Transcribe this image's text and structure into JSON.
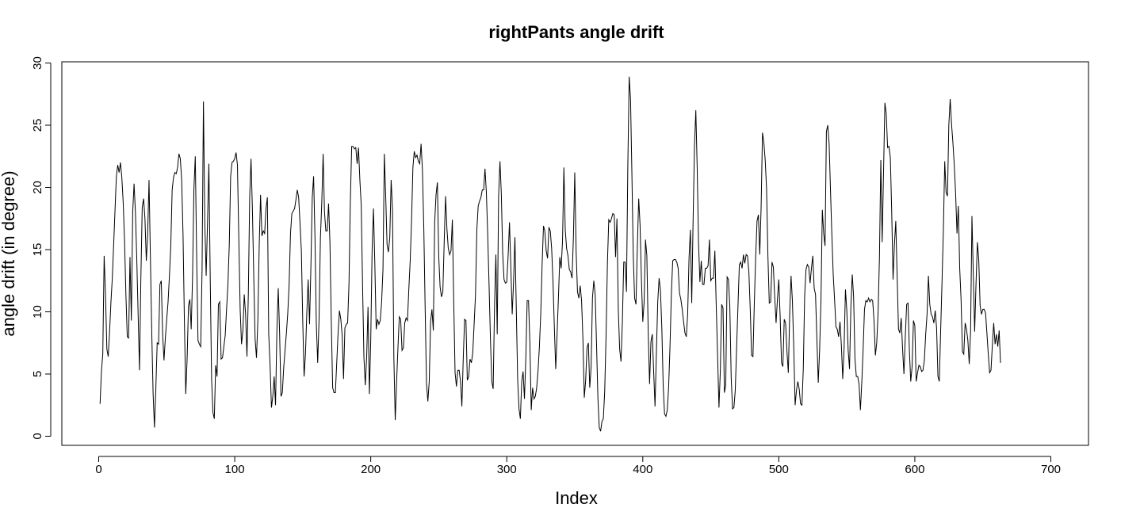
{
  "chart_data": {
    "type": "line",
    "title": "rightPants angle drift",
    "xlabel": "Index",
    "ylabel": "angle drift (in degree)",
    "xlim": [
      1,
      700
    ],
    "ylim": [
      0,
      30
    ],
    "x_ticks": [
      0,
      100,
      200,
      300,
      400,
      500,
      600,
      700
    ],
    "y_ticks": [
      0,
      5,
      10,
      15,
      20,
      25,
      30
    ],
    "grid": false,
    "legend": "none",
    "line_color": "#000000",
    "series": [
      {
        "x_start": 1,
        "x_step": 1,
        "values": [
          2.6,
          5.2,
          6.6,
          14.5,
          11.4,
          7.0,
          6.4,
          8.4,
          10.8,
          12.7,
          15.4,
          18.2,
          20.9,
          21.8,
          21.2,
          22.0,
          20.8,
          18.8,
          15.7,
          11.4,
          8.0,
          7.9,
          14.4,
          9.3,
          18.0,
          20.3,
          18.0,
          14.2,
          9.7,
          5.3,
          12.7,
          18.4,
          19.1,
          17.5,
          14.1,
          16.2,
          20.6,
          14.4,
          8.4,
          3.4,
          0.7,
          3.8,
          7.5,
          7.4,
          12.2,
          12.5,
          8.2,
          6.1,
          7.9,
          9.4,
          10.8,
          12.9,
          15.3,
          19.8,
          20.8,
          21.2,
          21.1,
          21.6,
          22.7,
          22.3,
          20.6,
          16.2,
          9.2,
          3.4,
          6.2,
          10.5,
          11.0,
          8.6,
          12.8,
          19.9,
          22.5,
          14.6,
          7.7,
          7.4,
          7.2,
          13.4,
          26.9,
          17.2,
          12.9,
          17.2,
          21.9,
          12.6,
          4.6,
          1.9,
          1.4,
          5.7,
          4.8,
          10.6,
          10.8,
          6.2,
          6.3,
          7.2,
          8.1,
          10.2,
          12.2,
          15.4,
          20.9,
          22.0,
          22.1,
          22.3,
          22.8,
          21.8,
          15.9,
          10.2,
          7.4,
          8.5,
          11.4,
          9.8,
          6.4,
          11.4,
          19.2,
          22.3,
          18.2,
          12.8,
          7.8,
          6.3,
          9.3,
          15.3,
          19.4,
          16.1,
          16.5,
          16.3,
          18.3,
          19.2,
          8.2,
          5.7,
          2.3,
          3.2,
          4.8,
          2.5,
          8.5,
          11.9,
          8.3,
          3.2,
          3.5,
          5.5,
          6.9,
          8.3,
          9.9,
          12.2,
          16.3,
          17.9,
          18.1,
          18.3,
          19.0,
          19.8,
          19.2,
          17.1,
          14.9,
          9.3,
          4.8,
          6.6,
          9.9,
          12.6,
          9.0,
          13.6,
          19.2,
          20.9,
          16.0,
          9.0,
          5.9,
          9.4,
          15.9,
          18.8,
          22.7,
          18.0,
          16.5,
          16.5,
          18.7,
          15.6,
          9.2,
          3.9,
          3.5,
          3.5,
          5.9,
          8.3,
          10.1,
          9.4,
          8.1,
          4.6,
          8.7,
          9.0,
          9.1,
          12.2,
          18.9,
          23.3,
          23.3,
          23.1,
          23.2,
          21.9,
          23.2,
          20.6,
          18.6,
          12.1,
          6.3,
          4.1,
          6.4,
          10.4,
          3.4,
          7.7,
          14.9,
          18.3,
          13.9,
          8.6,
          9.4,
          9.0,
          9.3,
          10.8,
          13.4,
          22.7,
          19.3,
          15.4,
          14.8,
          16.0,
          20.6,
          18.2,
          6.3,
          1.3,
          4.3,
          7.1,
          9.6,
          9.4,
          6.9,
          7.1,
          9.1,
          9.5,
          9.3,
          11.8,
          14.1,
          17.3,
          21.6,
          22.9,
          22.4,
          22.6,
          22.1,
          21.9,
          23.5,
          21.4,
          16.8,
          10.3,
          4.2,
          2.8,
          4.4,
          9.2,
          10.2,
          8.5,
          17.2,
          19.4,
          20.4,
          14.4,
          12.0,
          11.2,
          11.6,
          15.6,
          19.3,
          16.7,
          15.1,
          14.6,
          14.9,
          17.4,
          10.9,
          5.1,
          4.0,
          5.3,
          5.3,
          4.4,
          2.4,
          6.2,
          9.4,
          9.3,
          4.5,
          4.8,
          6.2,
          5.9,
          6.7,
          9.0,
          11.3,
          16.6,
          18.5,
          18.9,
          19.2,
          19.8,
          19.8,
          21.5,
          19.6,
          16.2,
          12.1,
          7.8,
          4.4,
          3.8,
          10.4,
          14.6,
          8.2,
          19.3,
          22.1,
          19.5,
          14.7,
          12.6,
          12.3,
          12.4,
          14.5,
          17.2,
          13.6,
          9.8,
          12.4,
          16.0,
          10.3,
          4.6,
          2.2,
          1.4,
          4.4,
          5.2,
          3.0,
          6.2,
          10.9,
          10.9,
          7.5,
          2.1,
          3.9,
          3.0,
          3.2,
          3.9,
          5.3,
          7.2,
          9.9,
          13.8,
          16.9,
          16.5,
          14.9,
          14.3,
          16.8,
          16.5,
          15.1,
          12.4,
          8.7,
          5.4,
          8.2,
          11.2,
          14.4,
          13.5,
          15.7,
          21.6,
          16.6,
          15.1,
          14.5,
          13.4,
          13.2,
          12.7,
          16.0,
          21.2,
          14.8,
          11.6,
          11.1,
          12.1,
          10.9,
          7.8,
          3.1,
          4.5,
          7.1,
          7.5,
          3.9,
          5.5,
          11.1,
          12.5,
          11.4,
          7.4,
          3.1,
          0.7,
          0.4,
          1.2,
          1.4,
          3.6,
          8.1,
          13.9,
          17.4,
          17.2,
          17.5,
          17.9,
          17.8,
          14.4,
          17.5,
          10.2,
          7.0,
          6.0,
          9.2,
          14.0,
          14.0,
          11.6,
          21.7,
          28.9,
          27.1,
          21.1,
          14.5,
          11.1,
          10.6,
          15.2,
          19.1,
          17.0,
          12.6,
          9.2,
          10.8,
          15.8,
          14.5,
          8.3,
          4.2,
          7.6,
          8.2,
          5.2,
          2.4,
          6.7,
          10.8,
          12.7,
          11.7,
          8.7,
          4.1,
          1.8,
          1.6,
          2.1,
          3.9,
          7.2,
          11.4,
          14.1,
          14.2,
          14.2,
          14.0,
          13.5,
          11.5,
          11.0,
          10.2,
          9.2,
          8.3,
          8.0,
          9.8,
          14.3,
          16.6,
          10.7,
          17.4,
          23.3,
          26.2,
          21.6,
          15.5,
          12.4,
          14.1,
          12.2,
          12.2,
          13.5,
          13.5,
          13.7,
          15.8,
          12.5,
          12.7,
          12.7,
          14.9,
          10.5,
          6.5,
          2.3,
          5.2,
          10.6,
          10.3,
          3.5,
          4.1,
          12.8,
          12.6,
          10.4,
          4.7,
          2.2,
          2.3,
          3.7,
          7.2,
          10.5,
          13.8,
          14.0,
          13.5,
          14.6,
          13.9,
          14.6,
          14.5,
          13.2,
          10.2,
          6.5,
          6.4,
          10.7,
          14.4,
          17.3,
          17.8,
          14.6,
          18.4,
          24.4,
          23.6,
          22.2,
          19.9,
          14.5,
          10.7,
          10.8,
          14.0,
          13.6,
          11.2,
          9.1,
          11.0,
          12.6,
          9.6,
          5.9,
          5.6,
          9.4,
          9.1,
          6.8,
          5.1,
          9.8,
          12.9,
          10.9,
          7.1,
          2.5,
          3.7,
          4.4,
          3.8,
          2.6,
          2.5,
          5.4,
          11.3,
          13.4,
          13.8,
          13.6,
          12.3,
          13.5,
          14.5,
          11.9,
          11.4,
          7.8,
          4.3,
          6.9,
          10.9,
          18.2,
          16.3,
          15.3,
          24.5,
          25.0,
          23.5,
          19.8,
          16.2,
          13.0,
          11.0,
          8.8,
          8.6,
          8.0,
          9.2,
          7.3,
          4.6,
          7.1,
          11.8,
          10.1,
          6.9,
          5.4,
          10.4,
          13.0,
          11.2,
          6.2,
          4.8,
          4.8,
          4.2,
          2.1,
          4.3,
          7.0,
          10.2,
          10.9,
          10.8,
          11.1,
          10.8,
          11.0,
          10.9,
          9.3,
          6.5,
          7.5,
          9.9,
          14.4,
          22.2,
          15.6,
          21.2,
          26.8,
          25.9,
          23.2,
          23.3,
          22.4,
          18.1,
          12.6,
          15.4,
          17.3,
          12.9,
          8.6,
          8.3,
          9.5,
          7.0,
          5.0,
          8.0,
          10.6,
          10.7,
          6.9,
          4.4,
          5.6,
          9.3,
          8.9,
          4.4,
          5.1,
          5.7,
          5.6,
          5.2,
          5.3,
          6.1,
          8.2,
          9.8,
          12.9,
          10.6,
          9.8,
          9.6,
          9.1,
          10.1,
          8.7,
          4.8,
          4.4,
          8.5,
          12.4,
          16.6,
          22.1,
          19.6,
          19.3,
          25.0,
          27.1,
          25.1,
          23.6,
          21.8,
          19.5,
          16.3,
          18.5,
          13.5,
          11.0,
          6.8,
          6.6,
          9.1,
          8.6,
          7.7,
          5.8,
          8.4,
          17.7,
          13.0,
          8.4,
          12.3,
          15.6,
          14.2,
          10.5,
          9.8,
          10.2,
          10.2,
          9.9,
          8.3,
          6.6,
          5.1,
          5.3,
          7.3,
          9.1,
          7.4,
          8.2,
          7.2,
          8.5,
          5.9
        ]
      }
    ]
  }
}
